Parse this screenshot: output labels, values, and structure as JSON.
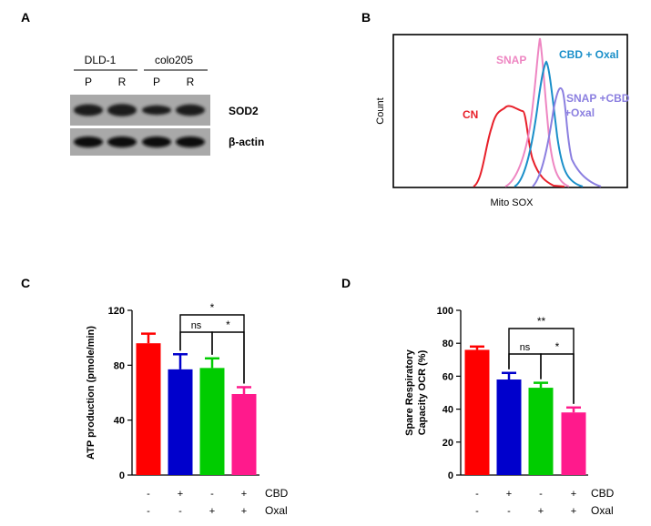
{
  "panels": {
    "a": "A",
    "b": "B",
    "c": "C",
    "d": "D"
  },
  "western": {
    "groups": [
      "DLD-1",
      "colo205"
    ],
    "lanes": [
      "P",
      "R",
      "P",
      "R"
    ],
    "rows": [
      "SOD2",
      "β-actin"
    ],
    "sod2_intensity": [
      0.85,
      0.95,
      0.55,
      0.8
    ]
  },
  "histogram": {
    "xlabel": "Mito SOX",
    "ylabel": "Count",
    "curves": [
      {
        "name": "CN",
        "color": "#e8202a"
      },
      {
        "name": "SNAP",
        "color": "#ee86c2"
      },
      {
        "name": "CBD + Oxal",
        "color": "#1a8fc9"
      },
      {
        "name": "SNAP +CBD\n+Oxal",
        "color": "#8b7fe0"
      }
    ],
    "label_snap_cbd_1": "SNAP +CBD",
    "label_snap_cbd_2": "+Oxal"
  },
  "chart_data": [
    {
      "type": "bar",
      "panel": "C",
      "ylabel": "ATP production (pmole/min)",
      "ylim": [
        0,
        120
      ],
      "yticks": [
        "0",
        "40",
        "80",
        "120"
      ],
      "values": [
        96,
        77,
        78,
        59
      ],
      "errors": [
        7,
        11,
        7,
        5
      ],
      "colors": [
        "#ff0000",
        "#0000cc",
        "#00cc00",
        "#ff1a8c"
      ],
      "row_labels": [
        "CBD",
        "Oxal"
      ],
      "cbd": [
        "-",
        "+",
        "-",
        "+"
      ],
      "oxal": [
        "-",
        "-",
        "+",
        "+"
      ],
      "significance": [
        {
          "from": 1,
          "to": 3,
          "label": "*"
        },
        {
          "from": 1,
          "to": 2,
          "label": "ns"
        },
        {
          "from": 2,
          "to": 3,
          "label": "*"
        }
      ]
    },
    {
      "type": "bar",
      "panel": "D",
      "ylabel": "Spare Respiratory Capacity OCR (%)",
      "ylabel_lines": [
        "Spare Respiratory",
        "Capacity OCR (%)"
      ],
      "ylim": [
        0,
        100
      ],
      "yticks": [
        "0",
        "20",
        "40",
        "60",
        "80",
        "100"
      ],
      "values": [
        76,
        58,
        53,
        38
      ],
      "errors": [
        2,
        4,
        3,
        3
      ],
      "colors": [
        "#ff0000",
        "#0000cc",
        "#00cc00",
        "#ff1a8c"
      ],
      "row_labels": [
        "CBD",
        "Oxal"
      ],
      "cbd": [
        "-",
        "+",
        "-",
        "+"
      ],
      "oxal": [
        "-",
        "-",
        "+",
        "+"
      ],
      "significance": [
        {
          "from": 1,
          "to": 3,
          "label": "**"
        },
        {
          "from": 1,
          "to": 2,
          "label": "ns"
        },
        {
          "from": 2,
          "to": 3,
          "label": "*"
        }
      ]
    }
  ]
}
